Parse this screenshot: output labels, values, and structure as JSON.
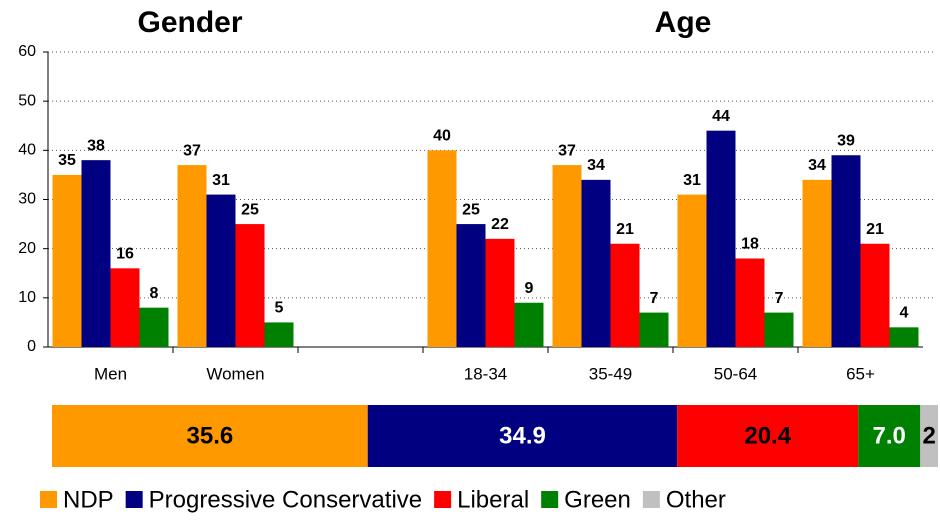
{
  "chart_data": [
    {
      "type": "bar",
      "group_titles": [
        "Gender",
        "Age"
      ],
      "categories": [
        "Men",
        "Women",
        null,
        "18-34",
        "35-49",
        "50-64",
        "65+"
      ],
      "series": [
        {
          "color": "#ff9900",
          "values": [
            35,
            37,
            null,
            40,
            37,
            31,
            34
          ]
        },
        {
          "color": "#000080",
          "values": [
            38,
            31,
            null,
            25,
            34,
            44,
            39
          ]
        },
        {
          "color": "#ff0000",
          "values": [
            16,
            25,
            null,
            22,
            21,
            18,
            21
          ]
        },
        {
          "color": "#008000",
          "values": [
            8,
            5,
            null,
            9,
            7,
            7,
            4
          ]
        }
      ],
      "ylim": [
        0,
        60
      ],
      "yticks": [
        0,
        10,
        20,
        30,
        40,
        50,
        60
      ],
      "grid": true
    },
    {
      "type": "stacked_bar",
      "series": [
        {
          "name": "NDP",
          "color": "#ff9900",
          "values": [
            35.6
          ],
          "value_labels": [
            "35.6"
          ],
          "label_color": "#000000"
        },
        {
          "name": "Progressive Conservative",
          "color": "#000080",
          "values": [
            34.9
          ],
          "value_labels": [
            "34.9"
          ],
          "label_color": "#ffffff"
        },
        {
          "name": "Liberal",
          "color": "#ff0000",
          "values": [
            20.4
          ],
          "value_labels": [
            "20.4"
          ],
          "label_color": "#000000"
        },
        {
          "name": "Green",
          "color": "#008000",
          "values": [
            7.0
          ],
          "value_labels": [
            "7.0"
          ],
          "label_color": "#ffffff"
        },
        {
          "name": "Other",
          "color": "#c0c0c0",
          "values": [
            2
          ],
          "value_labels": [
            "2"
          ],
          "label_color": "#000000"
        }
      ]
    }
  ]
}
